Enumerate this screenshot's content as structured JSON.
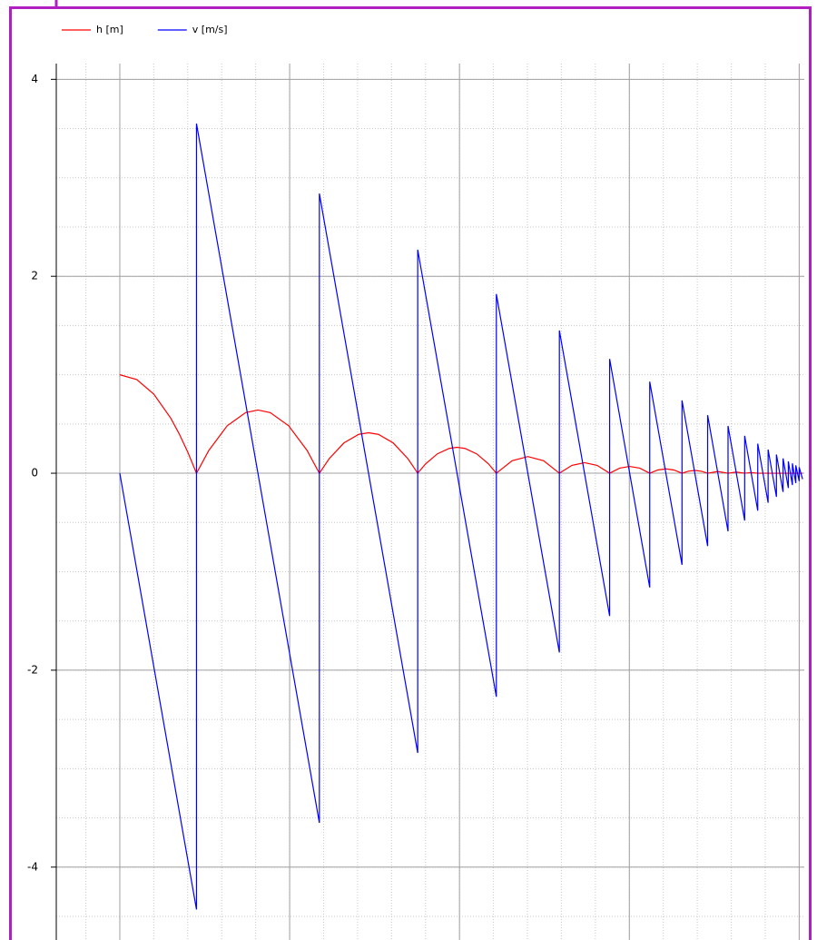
{
  "chart_data": {
    "type": "line",
    "xlim": [
      -0.374,
      4.03
    ],
    "xticks": [
      0,
      1,
      2,
      3,
      4
    ],
    "ylim": [
      -4.74,
      4.16
    ],
    "yticks": [
      -4,
      -2,
      0,
      2,
      4
    ],
    "grid": true,
    "legend": "top-left",
    "series": [
      {
        "name": "h [m]",
        "color": "#ff0000",
        "x": [
          0,
          0.1,
          0.2,
          0.3,
          0.35,
          0.4,
          0.4515,
          0.5239,
          0.6324,
          0.7409,
          0.8133,
          0.8856,
          0.9941,
          1.1027,
          1.175,
          1.2329,
          1.3198,
          1.4066,
          1.4645,
          1.5224,
          1.6093,
          1.6961,
          1.754,
          1.8003,
          1.8698,
          1.9392,
          1.9855,
          2.0318,
          2.1013,
          2.1707,
          2.217,
          2.3098,
          2.4025,
          2.4953,
          2.588,
          2.662,
          2.736,
          2.81,
          2.884,
          2.943,
          3.002,
          3.061,
          3.12,
          3.1675,
          3.215,
          3.2625,
          3.31,
          3.348,
          3.3855,
          3.423,
          3.461,
          3.521,
          3.581,
          3.63,
          3.679,
          3.7175,
          3.756,
          4.02
        ],
        "values": [
          1,
          0.951,
          0.804,
          0.559,
          0.399,
          0.215,
          0,
          0.231,
          0.482,
          0.616,
          0.642,
          0.616,
          0.482,
          0.231,
          0,
          0.148,
          0.308,
          0.395,
          0.411,
          0.395,
          0.308,
          0.148,
          0,
          0.095,
          0.197,
          0.252,
          0.263,
          0.252,
          0.197,
          0.095,
          0,
          0.127,
          0.169,
          0.127,
          0,
          0.08,
          0.107,
          0.08,
          0,
          0.052,
          0.069,
          0.052,
          0,
          0.033,
          0.044,
          0.033,
          0,
          0.021,
          0.028,
          0.021,
          0,
          0.018,
          0,
          0.012,
          0,
          0.007,
          0,
          0
        ]
      },
      {
        "name": "v [m/s]",
        "color": "#0000ff",
        "x": [
          0,
          0.4515,
          0.4515,
          1.175,
          1.175,
          1.754,
          1.754,
          2.217,
          2.217,
          2.588,
          2.588,
          2.884,
          2.884,
          3.12,
          3.12,
          3.31,
          3.31,
          3.461,
          3.461,
          3.581,
          3.581,
          3.679,
          3.679,
          3.756,
          3.756,
          3.817,
          3.817,
          3.866,
          3.866,
          3.905,
          3.905,
          3.936,
          3.936,
          3.96,
          3.96,
          3.98,
          3.98,
          4.0,
          4.0,
          4.02
        ],
        "values": [
          0,
          -4.43,
          3.55,
          -3.55,
          2.84,
          -2.84,
          2.27,
          -2.27,
          1.82,
          -1.82,
          1.45,
          -1.45,
          1.16,
          -1.16,
          0.93,
          -0.93,
          0.74,
          -0.74,
          0.59,
          -0.59,
          0.48,
          -0.48,
          0.38,
          -0.38,
          0.3,
          -0.3,
          0.24,
          -0.24,
          0.19,
          -0.19,
          0.15,
          -0.15,
          0.12,
          -0.12,
          0.1,
          -0.1,
          0.08,
          -0.08,
          0.06,
          -0.06
        ]
      }
    ]
  }
}
